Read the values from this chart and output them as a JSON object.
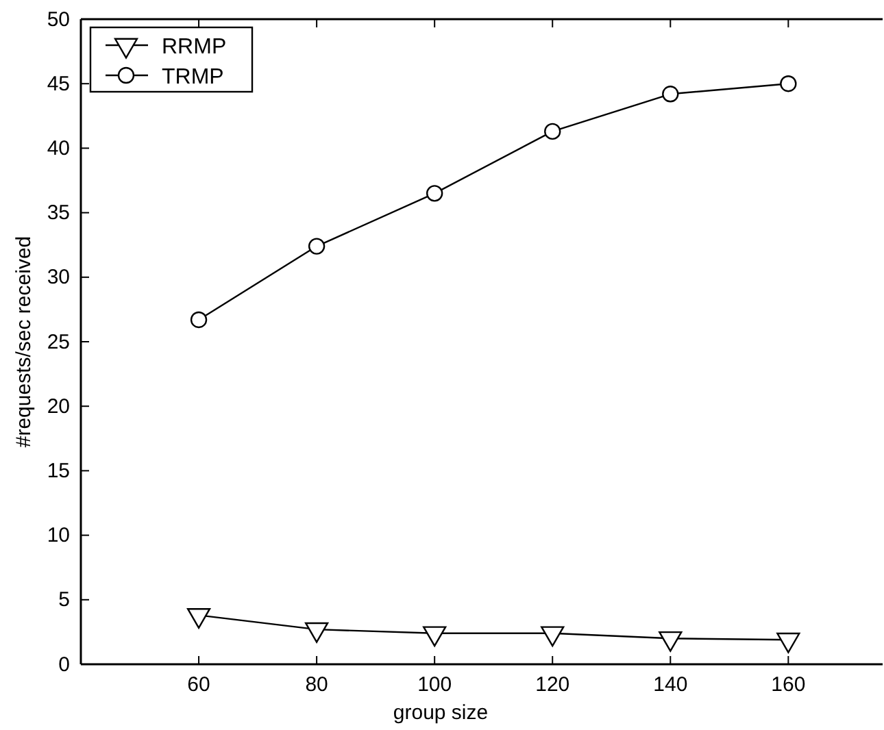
{
  "chart_data": {
    "type": "line",
    "xlabel": "group size",
    "ylabel": "#requests/sec received",
    "x": [
      60,
      80,
      100,
      120,
      140,
      160
    ],
    "series": [
      {
        "name": "RRMP",
        "color": "#000000",
        "marker": "triangle",
        "values": [
          3.8,
          2.7,
          2.4,
          2.4,
          2.0,
          1.9
        ]
      },
      {
        "name": "TRMP",
        "color": "#000000",
        "marker": "circle",
        "values": [
          26.7,
          32.4,
          36.5,
          41.3,
          44.2,
          45.0
        ]
      }
    ],
    "xlim": [
      40,
      176
    ],
    "xticks": [
      60,
      80,
      100,
      120,
      140,
      160
    ],
    "ylim": [
      0,
      50
    ],
    "yticks": [
      0,
      5,
      10,
      15,
      20,
      25,
      30,
      35,
      40,
      45,
      50
    ],
    "grid": false,
    "legend": "top left",
    "line_style": "solid"
  }
}
